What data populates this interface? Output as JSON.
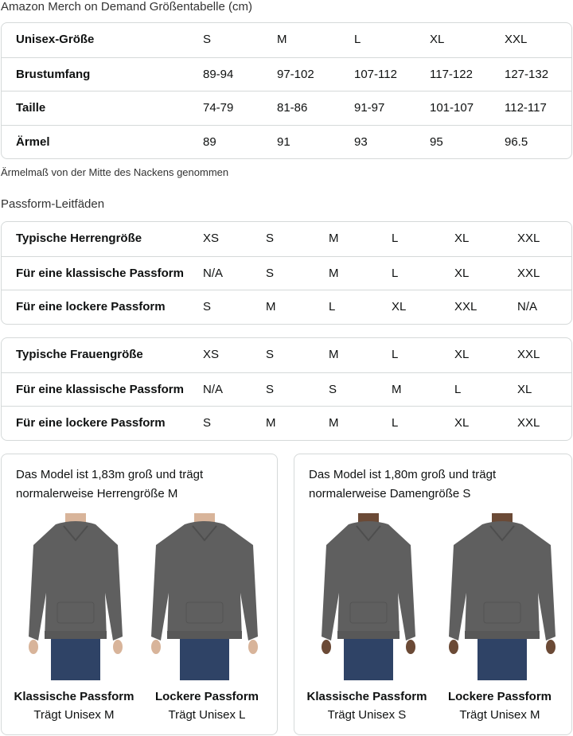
{
  "size_chart": {
    "title": "Amazon Merch on Demand Größentabelle (cm)",
    "rows": [
      [
        "Unisex-Größe",
        "S",
        "M",
        "L",
        "XL",
        "XXL"
      ],
      [
        "Brustumfang",
        "89-94",
        "97-102",
        "107-112",
        "117-122",
        "127-132"
      ],
      [
        "Taille",
        "74-79",
        "81-86",
        "91-97",
        "101-107",
        "112-117"
      ],
      [
        "Ärmel",
        "89",
        "91",
        "93",
        "95",
        "96.5"
      ]
    ],
    "note": "Ärmelmaß von der Mitte des Nackens genommen"
  },
  "fit_guide": {
    "title": "Passform-Leitfäden",
    "men": [
      [
        "Typische Herrengröße",
        "XS",
        "S",
        "M",
        "L",
        "XL",
        "XXL"
      ],
      [
        "Für eine klassische Passform",
        "N/A",
        "S",
        "M",
        "L",
        "XL",
        "XXL"
      ],
      [
        "Für eine lockere Passform",
        "S",
        "M",
        "L",
        "XL",
        "XXL",
        "N/A"
      ]
    ],
    "women": [
      [
        "Typische Frauengröße",
        "XS",
        "S",
        "M",
        "L",
        "XL",
        "XXL"
      ],
      [
        "Für eine klassische Passform",
        "N/A",
        "S",
        "S",
        "M",
        "L",
        "XL"
      ],
      [
        "Für eine lockere Passform",
        "S",
        "M",
        "M",
        "L",
        "XL",
        "XXL"
      ]
    ]
  },
  "models": [
    {
      "caption_line1": "Das Model ist 1,83m groß und trägt",
      "caption_line2": "normalerweise Herrengröße M",
      "figures": [
        {
          "fit": "Klassische Passform",
          "size": "Trägt Unisex M"
        },
        {
          "fit": "Lockere Passform",
          "size": "Trägt Unisex L"
        }
      ]
    },
    {
      "caption_line1": "Das Model ist 1,80m groß und trägt",
      "caption_line2": "normalerweise Damengröße S",
      "figures": [
        {
          "fit": "Klassische Passform",
          "size": "Trägt Unisex S"
        },
        {
          "fit": "Lockere Passform",
          "size": "Trägt Unisex M"
        }
      ]
    }
  ],
  "colors": {
    "hoodie": "#5f5f5f",
    "jeans": "#2f4366",
    "border": "#d5d9d9"
  }
}
